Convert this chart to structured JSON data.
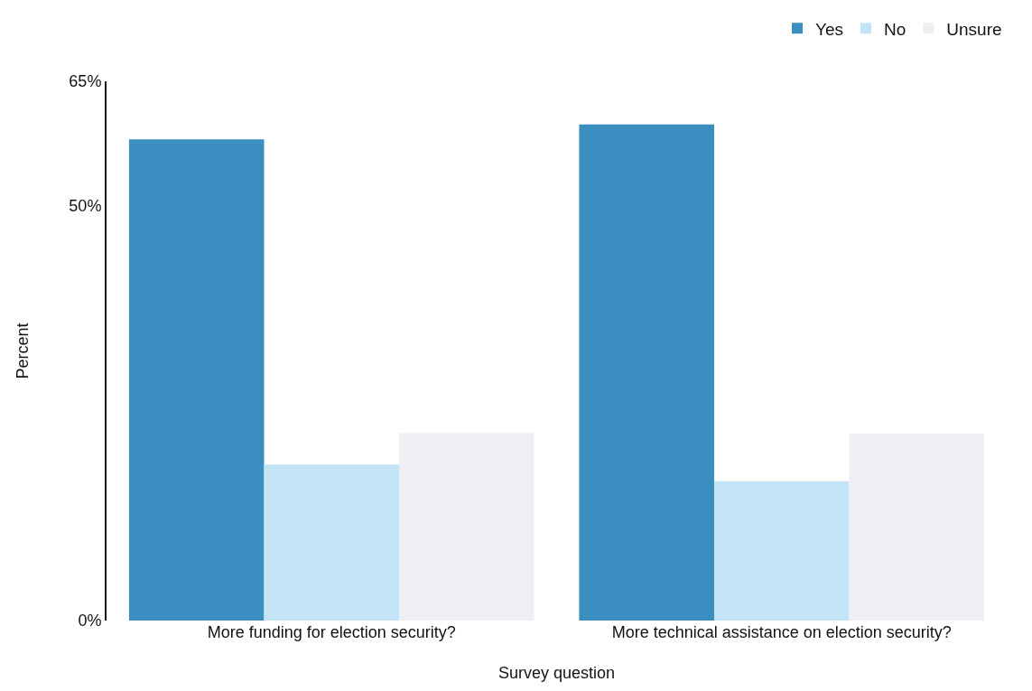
{
  "chart_data": {
    "type": "bar",
    "xlabel": "Survey question",
    "ylabel": "Percent",
    "categories": [
      "More funding for election security?",
      "More technical assistance on election security?"
    ],
    "series": [
      {
        "name": "Yes",
        "color": "#3a8fc0",
        "values": [
          58,
          59.8
        ]
      },
      {
        "name": "No",
        "color": "#c2e4f6",
        "values": [
          18.8,
          16.8
        ]
      },
      {
        "name": "Unsure",
        "color": "#eeeff3",
        "values": [
          22.6,
          22.5
        ]
      }
    ],
    "ylim": [
      0,
      65
    ],
    "yticks": [
      {
        "value": 0,
        "label": "0%"
      },
      {
        "value": 50,
        "label": "50%"
      },
      {
        "value": 65,
        "label": "65%"
      }
    ],
    "grid": false,
    "legend": "top right"
  }
}
